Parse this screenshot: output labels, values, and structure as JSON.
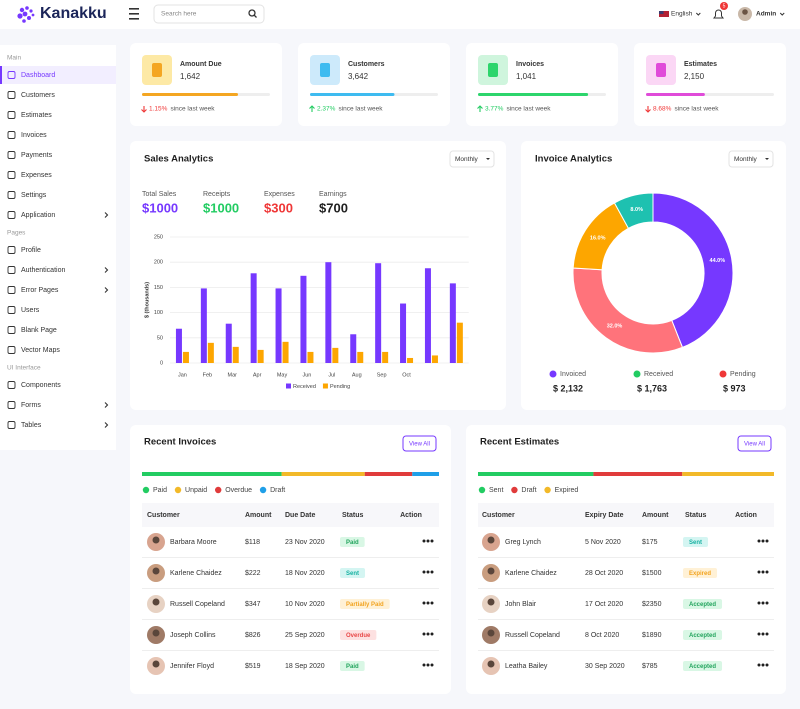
{
  "brand": "Kanakku",
  "search_placeholder": "Search here",
  "language": "English",
  "notification_count": 5,
  "user_name": "Admin",
  "sidebar": [
    {
      "section": "Main",
      "items": [
        {
          "label": "Dashboard",
          "active": true
        },
        {
          "label": "Customers"
        },
        {
          "label": "Estimates"
        },
        {
          "label": "Invoices"
        },
        {
          "label": "Payments"
        },
        {
          "label": "Expenses"
        },
        {
          "label": "Settings"
        },
        {
          "label": "Application",
          "has_submenu": true
        }
      ]
    },
    {
      "section": "Pages",
      "items": [
        {
          "label": "Profile"
        },
        {
          "label": "Authentication",
          "has_submenu": true
        },
        {
          "label": "Error Pages",
          "has_submenu": true
        },
        {
          "label": "Users"
        },
        {
          "label": "Blank Page"
        },
        {
          "label": "Vector Maps"
        }
      ]
    },
    {
      "section": "UI Interface",
      "items": [
        {
          "label": "Components"
        },
        {
          "label": "Forms",
          "has_submenu": true
        },
        {
          "label": "Tables",
          "has_submenu": true
        }
      ]
    }
  ],
  "stats": [
    {
      "title": "Amount Due",
      "value": "1,642",
      "change": "1.15%",
      "trend": "down",
      "note": "since last week",
      "progress": 75,
      "color": "#f4a622",
      "icon_bg": "#fde9a5"
    },
    {
      "title": "Customers",
      "value": "3,642",
      "change": "2.37%",
      "trend": "up",
      "note": "since last week",
      "progress": 66,
      "color": "#3ebbf0",
      "icon_bg": "#cdeafb"
    },
    {
      "title": "Invoices",
      "value": "1,041",
      "change": "3.77%",
      "trend": "up",
      "note": "since last week",
      "progress": 86,
      "color": "#2dd56c",
      "icon_bg": "#cff5dd"
    },
    {
      "title": "Estimates",
      "value": "2,150",
      "change": "8.68%",
      "trend": "down",
      "note": "since last week",
      "progress": 46,
      "color": "#e04bd9",
      "icon_bg": "#fbd7f5"
    }
  ],
  "sales_analytics": {
    "title": "Sales Analytics",
    "period": "Monthly",
    "totals": [
      {
        "label": "Total Sales",
        "value": "$1000",
        "color": "#7638ff"
      },
      {
        "label": "Receipts",
        "value": "$1000",
        "color": "#22cc62"
      },
      {
        "label": "Expenses",
        "value": "$300",
        "color": "#ef3737"
      },
      {
        "label": "Earnings",
        "value": "$700",
        "color": "#1f1f1f"
      }
    ],
    "chart_data": {
      "type": "bar",
      "y_label": "$ (thousands)",
      "categories": [
        "Jan",
        "Feb",
        "Mar",
        "Apr",
        "May",
        "Jun",
        "Jul",
        "Aug",
        "Sep",
        "Oct",
        null,
        null
      ],
      "series": [
        {
          "name": "Received",
          "color": "#7638ff",
          "values": [
            68,
            148,
            78,
            178,
            148,
            173,
            200,
            57,
            198,
            118,
            188,
            158
          ]
        },
        {
          "name": "Pending",
          "color": "#fda600",
          "values": [
            22,
            40,
            32,
            26,
            42,
            22,
            30,
            22,
            22,
            10,
            15,
            80
          ]
        }
      ],
      "ylim": [
        0,
        250
      ],
      "yticks": [
        0,
        50,
        100,
        150,
        200,
        250
      ],
      "grid": true,
      "legend": "bottom"
    }
  },
  "invoice_analytics": {
    "title": "Invoice Analytics",
    "period": "Monthly",
    "chart_data": {
      "type": "pie",
      "donut": true,
      "values": [
        44,
        32,
        16,
        8
      ],
      "value_labels": [
        "44.0%",
        "32.0%",
        "16.0%",
        "8.0%"
      ],
      "colors": [
        "#7638ff",
        "#ff737b",
        "#fda600",
        "#1ec1b0"
      ]
    },
    "legend": [
      {
        "label": "Invoiced",
        "amount": "$ 2,132",
        "color": "#7638ff"
      },
      {
        "label": "Received",
        "amount": "$ 1,763",
        "color": "#22cc62"
      },
      {
        "label": "Pending",
        "amount": "$ 973",
        "color": "#ef3737"
      }
    ]
  },
  "recent_invoices": {
    "title": "Recent Invoices",
    "button": "View All",
    "breakdown": [
      {
        "name": "Paid",
        "color": "#22cc62",
        "value": 47
      },
      {
        "name": "Unpaid",
        "color": "#f2b929",
        "value": 28
      },
      {
        "name": "Overdue",
        "color": "#e03b3b",
        "value": 16
      },
      {
        "name": "Draft",
        "color": "#1f9fe8",
        "value": 9
      }
    ],
    "columns": [
      "Customer",
      "Amount",
      "Due Date",
      "Status",
      "Action"
    ],
    "rows": [
      {
        "cells": [
          "Barbara Moore",
          "$118",
          "23 Nov 2020",
          "Paid"
        ],
        "badge": "success"
      },
      {
        "cells": [
          "Karlene Chaidez",
          "$222",
          "18 Nov 2020",
          "Sent"
        ],
        "badge": "info"
      },
      {
        "cells": [
          "Russell Copeland",
          "$347",
          "10 Nov 2020",
          "Partially Paid"
        ],
        "badge": "warning"
      },
      {
        "cells": [
          "Joseph Collins",
          "$826",
          "25 Sep 2020",
          "Overdue"
        ],
        "badge": "danger"
      },
      {
        "cells": [
          "Jennifer Floyd",
          "$519",
          "18 Sep 2020",
          "Paid"
        ],
        "badge": "success"
      }
    ]
  },
  "recent_estimates": {
    "title": "Recent Estimates",
    "button": "View All",
    "breakdown": [
      {
        "name": "Sent",
        "color": "#22cc62",
        "value": 39
      },
      {
        "name": "Draft",
        "color": "#e03b3b",
        "value": 30
      },
      {
        "name": "Expired",
        "color": "#f2b929",
        "value": 31
      }
    ],
    "columns": [
      "Customer",
      "Expiry Date",
      "Amount",
      "Status",
      "Action"
    ],
    "rows": [
      {
        "cells": [
          "Greg Lynch",
          "5 Nov 2020",
          "$175",
          "Sent"
        ],
        "badge": "info"
      },
      {
        "cells": [
          "Karlene Chaidez",
          "28 Oct 2020",
          "$1500",
          "Expired"
        ],
        "badge": "warning"
      },
      {
        "cells": [
          "John Blair",
          "17 Oct 2020",
          "$2350",
          "Accepted"
        ],
        "badge": "success"
      },
      {
        "cells": [
          "Russell Copeland",
          "8 Oct 2020",
          "$1890",
          "Accepted"
        ],
        "badge": "success"
      },
      {
        "cells": [
          "Leatha Bailey",
          "30 Sep 2020",
          "$785",
          "Accepted"
        ],
        "badge": "success"
      }
    ]
  }
}
